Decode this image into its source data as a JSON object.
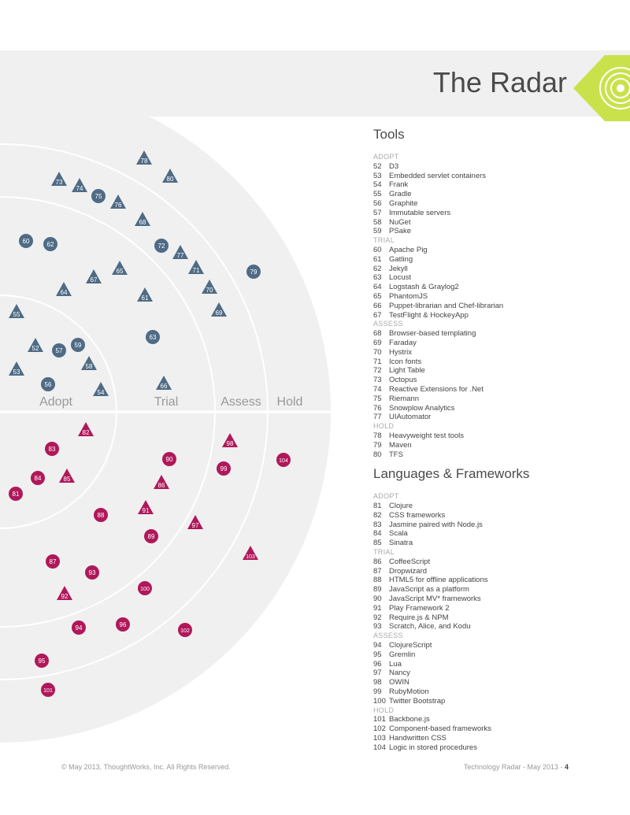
{
  "page": {
    "title": "The Radar",
    "footer_left": "© May 2013, ThoughtWorks, Inc. All Rights Reserved.",
    "footer_right": "Technology Radar - May 2013 - ",
    "page_number": "4"
  },
  "colors": {
    "tools": "#4f6b85",
    "languages": "#b0185a",
    "radar_bg": "#f0f0f0",
    "accent": "#c9e24b"
  },
  "rings": [
    "Adopt",
    "Trial",
    "Assess",
    "Hold"
  ],
  "tools": {
    "title": "Tools",
    "groups": [
      {
        "ring": "ADOPT",
        "items": [
          {
            "n": "52",
            "name": "D3"
          },
          {
            "n": "53",
            "name": "Embedded servlet containers"
          },
          {
            "n": "54",
            "name": "Frank"
          },
          {
            "n": "55",
            "name": "Gradle"
          },
          {
            "n": "56",
            "name": "Graphite"
          },
          {
            "n": "57",
            "name": "Immutable servers"
          },
          {
            "n": "58",
            "name": "NuGet"
          },
          {
            "n": "59",
            "name": "PSake"
          }
        ]
      },
      {
        "ring": "TRIAL",
        "items": [
          {
            "n": "60",
            "name": "Apache Pig"
          },
          {
            "n": "61",
            "name": "Gatling"
          },
          {
            "n": "62",
            "name": "Jekyll"
          },
          {
            "n": "63",
            "name": "Locust"
          },
          {
            "n": "64",
            "name": "Logstash & Graylog2"
          },
          {
            "n": "65",
            "name": "PhantomJS"
          },
          {
            "n": "66",
            "name": "Puppet-librarian and Chef-librarian"
          },
          {
            "n": "67",
            "name": "TestFlight & HockeyApp"
          }
        ]
      },
      {
        "ring": "ASSESS",
        "items": [
          {
            "n": "68",
            "name": "Browser-based templating"
          },
          {
            "n": "69",
            "name": "Faraday"
          },
          {
            "n": "70",
            "name": "Hystrix"
          },
          {
            "n": "71",
            "name": "Icon fonts"
          },
          {
            "n": "72",
            "name": "Light Table"
          },
          {
            "n": "73",
            "name": "Octopus"
          },
          {
            "n": "74",
            "name": "Reactive Extensions for .Net"
          },
          {
            "n": "75",
            "name": "Riemann"
          },
          {
            "n": "76",
            "name": "Snowplow Analytics"
          },
          {
            "n": "77",
            "name": "UIAutomator"
          }
        ]
      },
      {
        "ring": "HOLD",
        "items": [
          {
            "n": "78",
            "name": "Heavyweight test tools"
          },
          {
            "n": "79",
            "name": "Maven"
          },
          {
            "n": "80",
            "name": "TFS"
          }
        ]
      }
    ]
  },
  "languages": {
    "title": "Languages & Frameworks",
    "groups": [
      {
        "ring": "ADOPT",
        "items": [
          {
            "n": "81",
            "name": "Clojure"
          },
          {
            "n": "82",
            "name": "CSS frameworks"
          },
          {
            "n": "83",
            "name": "Jasmine paired with Node.js"
          },
          {
            "n": "84",
            "name": "Scala"
          },
          {
            "n": "85",
            "name": "Sinatra"
          }
        ]
      },
      {
        "ring": "TRIAL",
        "items": [
          {
            "n": "86",
            "name": "CoffeeScript"
          },
          {
            "n": "87",
            "name": "Dropwizard"
          },
          {
            "n": "88",
            "name": "HTML5 for offline applications"
          },
          {
            "n": "89",
            "name": "JavaScript as a platform"
          },
          {
            "n": "90",
            "name": "JavaScript MV* frameworks"
          },
          {
            "n": "91",
            "name": "Play Framework 2"
          },
          {
            "n": "92",
            "name": "Require.js & NPM"
          },
          {
            "n": "93",
            "name": "Scratch, Alice, and Kodu"
          }
        ]
      },
      {
        "ring": "ASSESS",
        "items": [
          {
            "n": "94",
            "name": "ClojureScript"
          },
          {
            "n": "95",
            "name": "Gremlin"
          },
          {
            "n": "96",
            "name": "Lua"
          },
          {
            "n": "97",
            "name": "Nancy"
          },
          {
            "n": "98",
            "name": "OWIN"
          },
          {
            "n": "99",
            "name": "RubyMotion"
          },
          {
            "n": "100",
            "name": "Twitter Bootstrap"
          }
        ]
      },
      {
        "ring": "HOLD",
        "items": [
          {
            "n": "101",
            "name": "Backbone.js"
          },
          {
            "n": "102",
            "name": "Component-based frameworks"
          },
          {
            "n": "103",
            "name": "Handwritten CSS"
          },
          {
            "n": "104",
            "name": "Logic in stored procedures"
          }
        ]
      }
    ]
  },
  "blips": [
    {
      "n": "52",
      "q": "tools",
      "shape": "triangle"
    },
    {
      "n": "53",
      "q": "tools",
      "shape": "triangle"
    },
    {
      "n": "54",
      "q": "tools",
      "shape": "triangle"
    },
    {
      "n": "55",
      "q": "tools",
      "shape": "triangle"
    },
    {
      "n": "56",
      "q": "tools",
      "shape": "circle"
    },
    {
      "n": "57",
      "q": "tools",
      "shape": "circle"
    },
    {
      "n": "58",
      "q": "tools",
      "shape": "triangle"
    },
    {
      "n": "59",
      "q": "tools",
      "shape": "circle"
    },
    {
      "n": "60",
      "q": "tools",
      "shape": "circle"
    },
    {
      "n": "61",
      "q": "tools",
      "shape": "triangle"
    },
    {
      "n": "62",
      "q": "tools",
      "shape": "circle"
    },
    {
      "n": "63",
      "q": "tools",
      "shape": "circle"
    },
    {
      "n": "64",
      "q": "tools",
      "shape": "triangle"
    },
    {
      "n": "65",
      "q": "tools",
      "shape": "triangle"
    },
    {
      "n": "66",
      "q": "tools",
      "shape": "triangle"
    },
    {
      "n": "67",
      "q": "tools",
      "shape": "triangle"
    },
    {
      "n": "68",
      "q": "tools",
      "shape": "triangle"
    },
    {
      "n": "69",
      "q": "tools",
      "shape": "triangle"
    },
    {
      "n": "70",
      "q": "tools",
      "shape": "triangle"
    },
    {
      "n": "71",
      "q": "tools",
      "shape": "triangle"
    },
    {
      "n": "72",
      "q": "tools",
      "shape": "circle"
    },
    {
      "n": "73",
      "q": "tools",
      "shape": "triangle"
    },
    {
      "n": "74",
      "q": "tools",
      "shape": "triangle"
    },
    {
      "n": "75",
      "q": "tools",
      "shape": "circle"
    },
    {
      "n": "76",
      "q": "tools",
      "shape": "triangle"
    },
    {
      "n": "77",
      "q": "tools",
      "shape": "triangle"
    },
    {
      "n": "78",
      "q": "tools",
      "shape": "triangle"
    },
    {
      "n": "79",
      "q": "tools",
      "shape": "circle"
    },
    {
      "n": "80",
      "q": "tools",
      "shape": "triangle"
    },
    {
      "n": "81",
      "q": "languages",
      "shape": "circle"
    },
    {
      "n": "82",
      "q": "languages",
      "shape": "triangle"
    },
    {
      "n": "83",
      "q": "languages",
      "shape": "circle"
    },
    {
      "n": "84",
      "q": "languages",
      "shape": "circle"
    },
    {
      "n": "85",
      "q": "languages",
      "shape": "triangle"
    },
    {
      "n": "86",
      "q": "languages",
      "shape": "triangle"
    },
    {
      "n": "87",
      "q": "languages",
      "shape": "circle"
    },
    {
      "n": "88",
      "q": "languages",
      "shape": "circle"
    },
    {
      "n": "89",
      "q": "languages",
      "shape": "circle"
    },
    {
      "n": "90",
      "q": "languages",
      "shape": "circle"
    },
    {
      "n": "91",
      "q": "languages",
      "shape": "triangle"
    },
    {
      "n": "92",
      "q": "languages",
      "shape": "triangle"
    },
    {
      "n": "93",
      "q": "languages",
      "shape": "circle"
    },
    {
      "n": "94",
      "q": "languages",
      "shape": "circle"
    },
    {
      "n": "95",
      "q": "languages",
      "shape": "circle"
    },
    {
      "n": "96",
      "q": "languages",
      "shape": "circle"
    },
    {
      "n": "97",
      "q": "languages",
      "shape": "triangle"
    },
    {
      "n": "98",
      "q": "languages",
      "shape": "triangle"
    },
    {
      "n": "99",
      "q": "languages",
      "shape": "circle"
    },
    {
      "n": "100",
      "q": "languages",
      "shape": "circle"
    },
    {
      "n": "101",
      "q": "languages",
      "shape": "circle"
    },
    {
      "n": "102",
      "q": "languages",
      "shape": "circle"
    },
    {
      "n": "103",
      "q": "languages",
      "shape": "triangle"
    },
    {
      "n": "104",
      "q": "languages",
      "shape": "circle"
    }
  ]
}
